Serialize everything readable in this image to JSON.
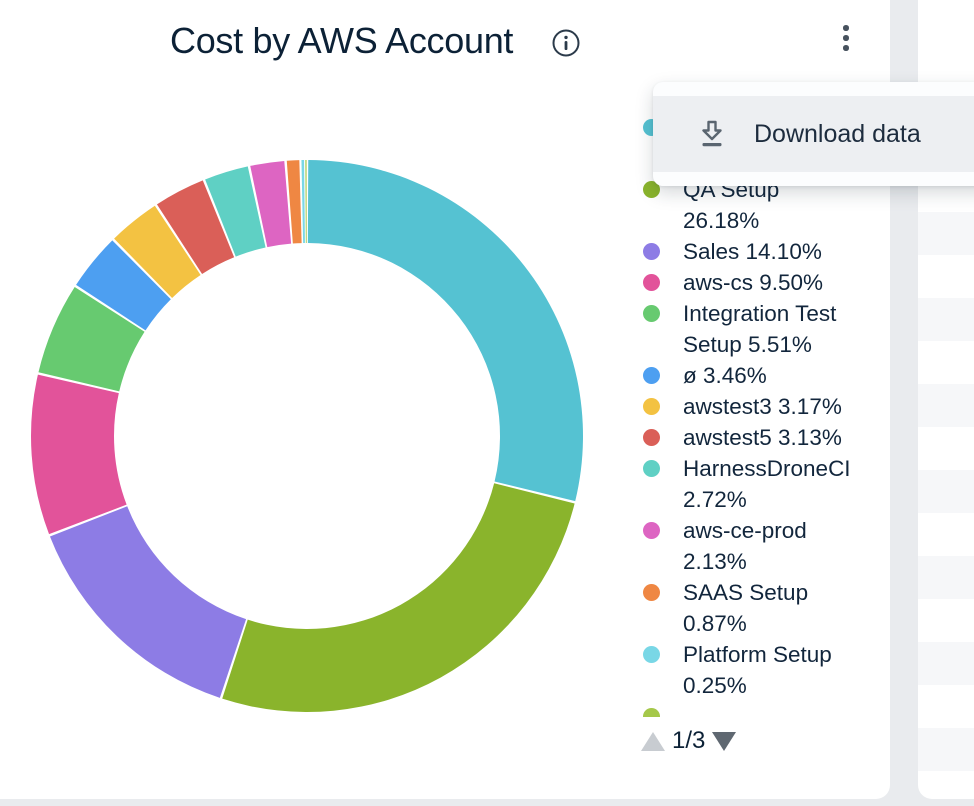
{
  "header": {
    "title": "Cost by AWS Account",
    "info_icon": "info-icon",
    "menu_icon": "kebab-menu-icon"
  },
  "menu": {
    "download_label": "Download data",
    "download_icon": "download-icon"
  },
  "pagination": {
    "label": "1/3",
    "up_icon": "triangle-up-icon",
    "down_icon": "triangle-down-icon"
  },
  "colors": {
    "page_background": "#e9ebee",
    "card_background": "#ffffff",
    "menu_row_highlight": "#edeff2",
    "text_primary": "#0c2136",
    "table_stripe": "#f6f7f9"
  },
  "chart_data": {
    "type": "pie",
    "subtype": "donut",
    "title": "Cost by AWS Account",
    "legend_position": "right",
    "legend_pagination": "1/3",
    "start_angle_deg": 0,
    "direction": "clockwise",
    "segments": [
      {
        "label": "",
        "occluded": true,
        "value": 28.86,
        "color": "#55c2d2",
        "legend_lines": [
          "",
          ""
        ]
      },
      {
        "label": "QA Setup",
        "value": 26.18,
        "color": "#8ab42c",
        "legend_lines": [
          "QA Setup",
          "26.18%"
        ]
      },
      {
        "label": "Sales",
        "value": 14.1,
        "color": "#8d7ce5",
        "legend_lines": [
          "Sales 14.10%"
        ]
      },
      {
        "label": "aws-cs",
        "value": 9.5,
        "color": "#e2539a",
        "legend_lines": [
          "aws-cs 9.50%"
        ]
      },
      {
        "label": "Integration Test Setup",
        "value": 5.51,
        "color": "#67ca70",
        "legend_lines": [
          "Integration Test",
          "Setup 5.51%"
        ]
      },
      {
        "label": "ø",
        "value": 3.46,
        "color": "#4d9ff1",
        "legend_lines": [
          "ø 3.46%"
        ]
      },
      {
        "label": "awstest3",
        "value": 3.17,
        "color": "#f3c242",
        "legend_lines": [
          "awstest3 3.17%"
        ]
      },
      {
        "label": "awstest5",
        "value": 3.13,
        "color": "#da5f58",
        "legend_lines": [
          "awstest5 3.13%"
        ]
      },
      {
        "label": "HarnessDroneCI",
        "value": 2.72,
        "color": "#5fd0c4",
        "legend_lines": [
          "HarnessDroneCI",
          "2.72%"
        ]
      },
      {
        "label": "aws-ce-prod",
        "value": 2.13,
        "color": "#dd65c2",
        "legend_lines": [
          "aws-ce-prod",
          "2.13%"
        ]
      },
      {
        "label": "SAAS Setup",
        "value": 0.87,
        "color": "#ef8743",
        "legend_lines": [
          "SAAS Setup",
          "0.87%"
        ]
      },
      {
        "label": "Platform Setup",
        "value": 0.25,
        "color": "#79d7e6",
        "legend_lines": [
          "Platform Setup",
          "0.25%"
        ]
      },
      {
        "label": "",
        "occluded": true,
        "value": 0.12,
        "color": "#a5c84a",
        "legend_lines": [
          "",
          ""
        ]
      }
    ],
    "geometry": {
      "outer_radius": 276,
      "inner_radius": 193
    }
  }
}
